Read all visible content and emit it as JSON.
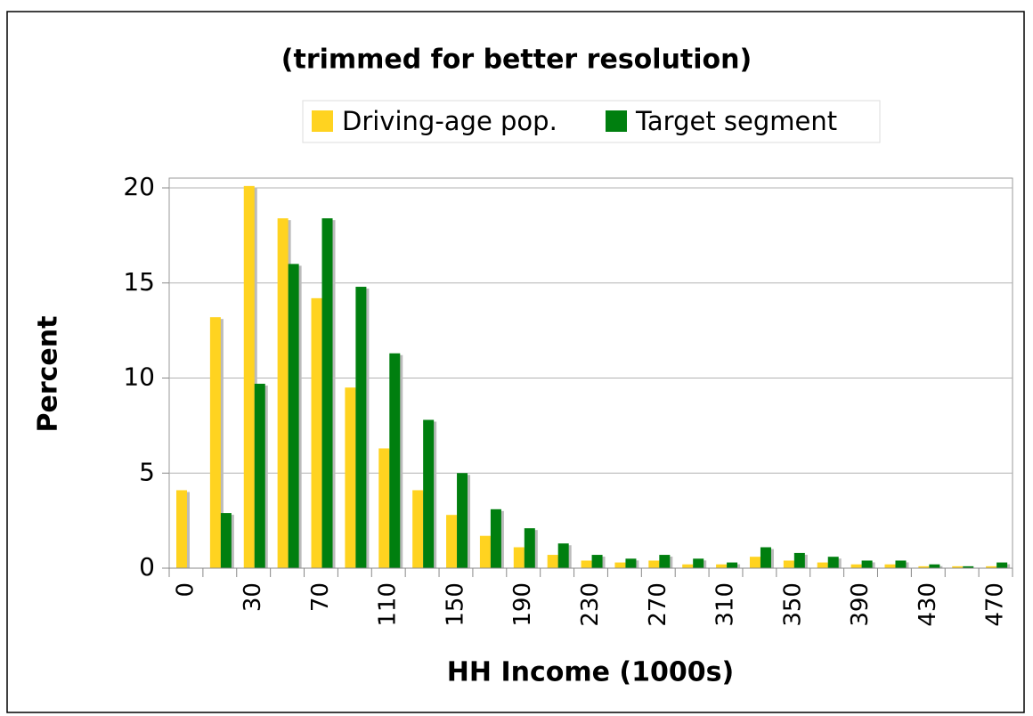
{
  "chart_data": {
    "type": "bar",
    "title": "(trimmed for better resolution)",
    "xlabel": "HH Income (1000s)",
    "ylabel": "Percent",
    "categories": [
      "0",
      null,
      "30",
      null,
      "70",
      null,
      "110",
      null,
      "150",
      null,
      "190",
      null,
      "230",
      null,
      "270",
      null,
      "310",
      null,
      "350",
      null,
      "390",
      null,
      "430",
      null,
      "470"
    ],
    "series": [
      {
        "name": "Driving-age pop.",
        "color": "#ffd320",
        "values": [
          4.1,
          13.2,
          20.1,
          18.4,
          14.2,
          9.5,
          6.3,
          4.1,
          2.8,
          1.7,
          1.1,
          0.7,
          0.4,
          0.3,
          0.4,
          0.2,
          0.2,
          0.6,
          0.4,
          0.3,
          0.2,
          0.2,
          0.1,
          0.1,
          0.1
        ]
      },
      {
        "name": "Target segment",
        "color": "#007f0f",
        "values": [
          0,
          2.9,
          9.7,
          16.0,
          18.4,
          14.8,
          11.3,
          7.8,
          5.0,
          3.1,
          2.1,
          1.3,
          0.7,
          0.5,
          0.7,
          0.5,
          0.3,
          1.1,
          0.8,
          0.6,
          0.4,
          0.4,
          0.2,
          0.1,
          0.3
        ]
      }
    ],
    "ylim": [
      0,
      20
    ],
    "yticks": [
      0,
      5,
      10,
      15,
      20
    ],
    "grid": true
  }
}
